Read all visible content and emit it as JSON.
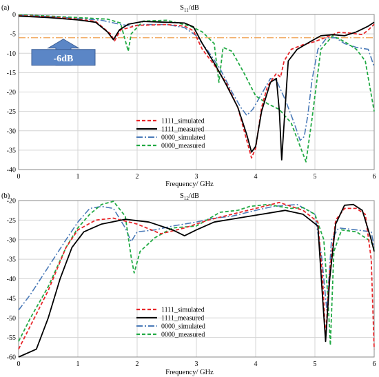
{
  "colors": {
    "sim1111": "#e8262a",
    "meas1111": "#000000",
    "sim0000": "#4a7ab8",
    "meas0000": "#22aa44",
    "ref": "#f0a050",
    "arrow": "#5b86c6",
    "grid": "#d4d4d4"
  },
  "chart_data": [
    {
      "type": "line",
      "panel_label": "(a)",
      "title_main": "S",
      "title_sub": "11",
      "title_unit": "/dB",
      "xlabel": "Frequency/ GHz",
      "xlim": [
        0,
        6
      ],
      "ylim": [
        -40,
        0
      ],
      "xticks": [
        0,
        1,
        2,
        3,
        4,
        5,
        6
      ],
      "yticks": [
        0,
        -5,
        -10,
        -15,
        -20,
        -25,
        -30,
        -35,
        -40
      ],
      "grid": true,
      "legend_position": "lower-center",
      "reference_line": {
        "y": -6,
        "label": "-6dB"
      },
      "series": [
        {
          "name": "1111_simulated",
          "style": "sim1111",
          "points": [
            [
              0,
              -0.3
            ],
            [
              0.5,
              -0.6
            ],
            [
              1.0,
              -1.2
            ],
            [
              1.3,
              -1.8
            ],
            [
              1.55,
              -5.0
            ],
            [
              1.62,
              -6.8
            ],
            [
              1.72,
              -4.0
            ],
            [
              2.0,
              -2.8
            ],
            [
              2.5,
              -2.6
            ],
            [
              2.8,
              -3.0
            ],
            [
              2.95,
              -4.2
            ],
            [
              3.1,
              -9.0
            ],
            [
              3.3,
              -13.0
            ],
            [
              3.5,
              -17.5
            ],
            [
              3.7,
              -24.0
            ],
            [
              3.85,
              -32.5
            ],
            [
              3.93,
              -37.0
            ],
            [
              4.0,
              -34.5
            ],
            [
              4.1,
              -24.0
            ],
            [
              4.2,
              -18.5
            ],
            [
              4.35,
              -15.2
            ],
            [
              4.42,
              -16.2
            ],
            [
              4.48,
              -12.0
            ],
            [
              4.6,
              -9.0
            ],
            [
              4.8,
              -7.8
            ],
            [
              5.0,
              -7.0
            ],
            [
              5.2,
              -5.8
            ],
            [
              5.4,
              -4.6
            ],
            [
              5.6,
              -4.8
            ],
            [
              5.8,
              -5.2
            ],
            [
              5.9,
              -4.0
            ],
            [
              6.0,
              -2.5
            ]
          ]
        },
        {
          "name": "1111_measured",
          "style": "meas1111",
          "points": [
            [
              0,
              -0.4
            ],
            [
              0.5,
              -0.8
            ],
            [
              1.0,
              -1.4
            ],
            [
              1.3,
              -2.0
            ],
            [
              1.5,
              -4.5
            ],
            [
              1.6,
              -6.5
            ],
            [
              1.7,
              -4.0
            ],
            [
              1.85,
              -2.5
            ],
            [
              2.1,
              -1.8
            ],
            [
              2.5,
              -2.0
            ],
            [
              2.8,
              -2.2
            ],
            [
              2.95,
              -3.2
            ],
            [
              3.1,
              -7.5
            ],
            [
              3.3,
              -12.5
            ],
            [
              3.5,
              -18.0
            ],
            [
              3.7,
              -24.0
            ],
            [
              3.85,
              -31.0
            ],
            [
              3.93,
              -35.5
            ],
            [
              4.0,
              -34.0
            ],
            [
              4.1,
              -25.0
            ],
            [
              4.25,
              -17.5
            ],
            [
              4.35,
              -16.5
            ],
            [
              4.4,
              -25.0
            ],
            [
              4.44,
              -37.5
            ],
            [
              4.48,
              -28.0
            ],
            [
              4.55,
              -12.0
            ],
            [
              4.7,
              -9.0
            ],
            [
              4.9,
              -7.2
            ],
            [
              5.1,
              -5.5
            ],
            [
              5.3,
              -5.2
            ],
            [
              5.5,
              -5.5
            ],
            [
              5.7,
              -4.5
            ],
            [
              5.9,
              -3.0
            ],
            [
              6.0,
              -2.0
            ]
          ]
        },
        {
          "name": "0000_simulated",
          "style": "sim0000",
          "points": [
            [
              0,
              -0.2
            ],
            [
              0.5,
              -0.5
            ],
            [
              1.0,
              -1.0
            ],
            [
              1.4,
              -1.5
            ],
            [
              1.7,
              -2.5
            ],
            [
              1.9,
              -3.0
            ],
            [
              2.1,
              -2.6
            ],
            [
              2.5,
              -2.6
            ],
            [
              2.8,
              -3.4
            ],
            [
              3.0,
              -5.5
            ],
            [
              3.2,
              -9.5
            ],
            [
              3.4,
              -14.0
            ],
            [
              3.6,
              -20.0
            ],
            [
              3.75,
              -24.0
            ],
            [
              3.85,
              -26.0
            ],
            [
              3.95,
              -24.5
            ],
            [
              4.1,
              -20.5
            ],
            [
              4.25,
              -16.5
            ],
            [
              4.35,
              -17.0
            ],
            [
              4.5,
              -22.0
            ],
            [
              4.65,
              -28.0
            ],
            [
              4.75,
              -32.5
            ],
            [
              4.82,
              -31.5
            ],
            [
              4.88,
              -26.0
            ],
            [
              4.95,
              -17.0
            ],
            [
              5.05,
              -9.0
            ],
            [
              5.2,
              -6.0
            ],
            [
              5.35,
              -6.0
            ],
            [
              5.5,
              -7.5
            ],
            [
              5.7,
              -8.5
            ],
            [
              5.9,
              -9.0
            ],
            [
              6.0,
              -13.5
            ]
          ]
        },
        {
          "name": "0000_measured",
          "style": "meas0000",
          "points": [
            [
              0,
              -0.1
            ],
            [
              0.5,
              -0.4
            ],
            [
              1.0,
              -0.8
            ],
            [
              1.5,
              -1.2
            ],
            [
              1.72,
              -2.2
            ],
            [
              1.85,
              -9.5
            ],
            [
              1.9,
              -5.0
            ],
            [
              2.1,
              -1.7
            ],
            [
              2.5,
              -1.5
            ],
            [
              2.9,
              -3.0
            ],
            [
              3.1,
              -4.5
            ],
            [
              3.3,
              -7.5
            ],
            [
              3.38,
              -17.5
            ],
            [
              3.45,
              -8.5
            ],
            [
              3.6,
              -9.5
            ],
            [
              3.8,
              -15.0
            ],
            [
              4.0,
              -21.0
            ],
            [
              4.2,
              -23.0
            ],
            [
              4.4,
              -24.5
            ],
            [
              4.6,
              -28.0
            ],
            [
              4.75,
              -34.0
            ],
            [
              4.85,
              -38.0
            ],
            [
              4.95,
              -27.0
            ],
            [
              5.1,
              -9.0
            ],
            [
              5.3,
              -5.5
            ],
            [
              5.5,
              -7.0
            ],
            [
              5.7,
              -9.0
            ],
            [
              5.85,
              -12.0
            ],
            [
              6.0,
              -25.0
            ]
          ]
        }
      ]
    },
    {
      "type": "line",
      "panel_label": "(b)",
      "title_main": "S",
      "title_sub": "12",
      "title_unit": "/dB",
      "xlabel": "Frequency/ GHz",
      "xlim": [
        0,
        6
      ],
      "ylim": [
        -60,
        -20
      ],
      "xticks": [
        0,
        1,
        2,
        3,
        4,
        5,
        6
      ],
      "yticks": [
        -20,
        -25,
        -30,
        -35,
        -40,
        -45,
        -50,
        -55,
        -60
      ],
      "grid": true,
      "legend_position": "lower-center",
      "series": [
        {
          "name": "1111_simulated",
          "style": "sim1111",
          "points": [
            [
              0,
              -58.0
            ],
            [
              0.2,
              -52.0
            ],
            [
              0.5,
              -43.0
            ],
            [
              0.8,
              -32.0
            ],
            [
              1.0,
              -27.5
            ],
            [
              1.3,
              -25.0
            ],
            [
              1.6,
              -24.5
            ],
            [
              2.0,
              -26.0
            ],
            [
              2.4,
              -28.5
            ],
            [
              2.8,
              -27.0
            ],
            [
              3.2,
              -25.0
            ],
            [
              3.6,
              -23.5
            ],
            [
              4.0,
              -22.0
            ],
            [
              4.4,
              -20.5
            ],
            [
              4.8,
              -22.5
            ],
            [
              5.05,
              -25.5
            ],
            [
              5.13,
              -40.0
            ],
            [
              5.18,
              -55.0
            ],
            [
              5.25,
              -38.0
            ],
            [
              5.35,
              -25.0
            ],
            [
              5.5,
              -22.0
            ],
            [
              5.7,
              -22.0
            ],
            [
              5.85,
              -23.5
            ],
            [
              5.95,
              -35.0
            ],
            [
              6.0,
              -58.0
            ]
          ]
        },
        {
          "name": "1111_measured",
          "style": "meas1111",
          "points": [
            [
              0,
              -60.0
            ],
            [
              0.3,
              -58.0
            ],
            [
              0.5,
              -50.0
            ],
            [
              0.7,
              -40.0
            ],
            [
              0.9,
              -32.0
            ],
            [
              1.1,
              -28.0
            ],
            [
              1.4,
              -26.0
            ],
            [
              1.8,
              -24.8
            ],
            [
              2.2,
              -25.5
            ],
            [
              2.6,
              -27.5
            ],
            [
              2.8,
              -29.0
            ],
            [
              3.0,
              -27.5
            ],
            [
              3.3,
              -25.5
            ],
            [
              3.7,
              -24.5
            ],
            [
              4.1,
              -23.5
            ],
            [
              4.5,
              -22.5
            ],
            [
              4.8,
              -23.5
            ],
            [
              5.05,
              -26.5
            ],
            [
              5.13,
              -45.0
            ],
            [
              5.18,
              -56.0
            ],
            [
              5.25,
              -40.0
            ],
            [
              5.35,
              -26.0
            ],
            [
              5.5,
              -21.2
            ],
            [
              5.65,
              -21.0
            ],
            [
              5.8,
              -22.5
            ],
            [
              5.95,
              -30.0
            ],
            [
              6.0,
              -33.0
            ]
          ]
        },
        {
          "name": "0000_simulated",
          "style": "sim0000",
          "points": [
            [
              0,
              -48.0
            ],
            [
              0.2,
              -44.0
            ],
            [
              0.5,
              -37.0
            ],
            [
              0.8,
              -30.0
            ],
            [
              1.0,
              -25.5
            ],
            [
              1.2,
              -22.0
            ],
            [
              1.4,
              -21.5
            ],
            [
              1.6,
              -22.0
            ],
            [
              1.8,
              -27.0
            ],
            [
              1.9,
              -30.5
            ],
            [
              2.0,
              -28.0
            ],
            [
              2.3,
              -27.5
            ],
            [
              2.6,
              -26.5
            ],
            [
              3.0,
              -25.5
            ],
            [
              3.3,
              -24.5
            ],
            [
              3.6,
              -24.0
            ],
            [
              4.0,
              -22.5
            ],
            [
              4.3,
              -21.5
            ],
            [
              4.7,
              -21.0
            ],
            [
              5.0,
              -23.5
            ],
            [
              5.12,
              -35.0
            ],
            [
              5.2,
              -48.0
            ],
            [
              5.28,
              -30.0
            ],
            [
              5.4,
              -27.0
            ],
            [
              5.7,
              -27.5
            ],
            [
              5.95,
              -28.0
            ],
            [
              6.0,
              -32.0
            ]
          ]
        },
        {
          "name": "0000_measured",
          "style": "meas0000",
          "points": [
            [
              0,
              -56.0
            ],
            [
              0.2,
              -50.0
            ],
            [
              0.5,
              -42.0
            ],
            [
              0.8,
              -32.0
            ],
            [
              1.0,
              -27.0
            ],
            [
              1.2,
              -23.5
            ],
            [
              1.4,
              -21.0
            ],
            [
              1.6,
              -20.2
            ],
            [
              1.8,
              -24.0
            ],
            [
              1.9,
              -34.5
            ],
            [
              1.95,
              -38.5
            ],
            [
              2.05,
              -33.0
            ],
            [
              2.3,
              -29.5
            ],
            [
              2.6,
              -27.0
            ],
            [
              3.0,
              -26.5
            ],
            [
              3.4,
              -23.0
            ],
            [
              3.7,
              -22.5
            ],
            [
              3.9,
              -21.5
            ],
            [
              4.2,
              -21.0
            ],
            [
              4.6,
              -22.0
            ],
            [
              4.8,
              -21.8
            ],
            [
              5.0,
              -23.5
            ],
            [
              5.15,
              -30.0
            ],
            [
              5.22,
              -45.0
            ],
            [
              5.26,
              -57.0
            ],
            [
              5.32,
              -33.0
            ],
            [
              5.45,
              -27.5
            ],
            [
              5.7,
              -28.0
            ],
            [
              5.95,
              -30.5
            ],
            [
              6.0,
              -32.5
            ]
          ]
        }
      ]
    }
  ]
}
